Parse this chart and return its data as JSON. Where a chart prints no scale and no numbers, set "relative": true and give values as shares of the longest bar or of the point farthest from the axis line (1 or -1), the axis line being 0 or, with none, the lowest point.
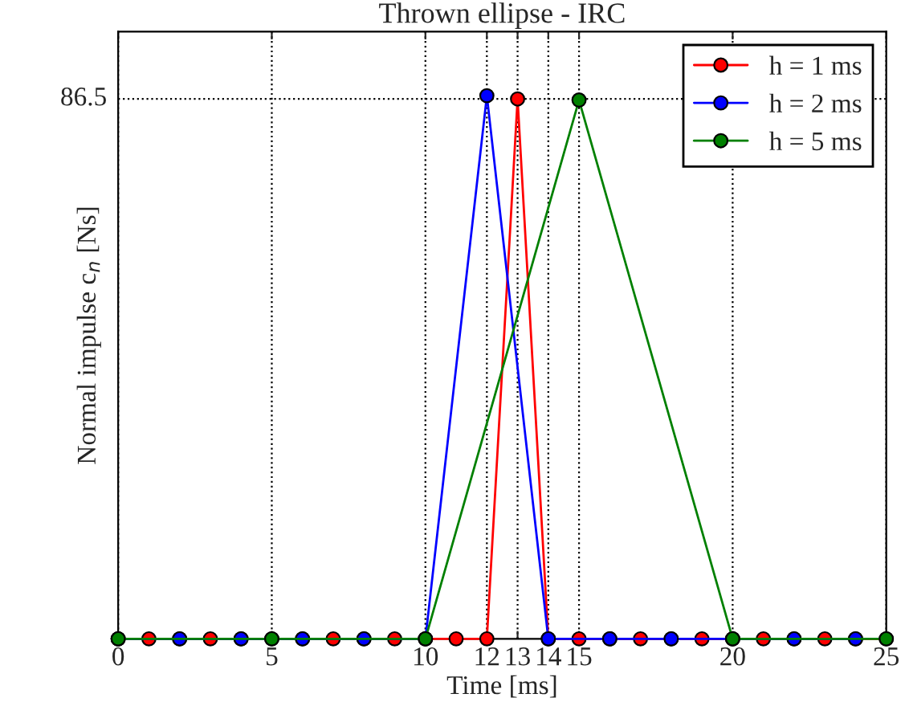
{
  "chart_data": {
    "type": "line",
    "title": "Thrown ellipse - IRC",
    "xlabel": "Time [ms]",
    "ylabel": "Normal impulse c$_{n}$ [Ns]",
    "xlim": [
      0,
      25
    ],
    "xticks": [
      0,
      5,
      10,
      12,
      13,
      14,
      15,
      20,
      25
    ],
    "relative": true,
    "annotations": [
      "86.5"
    ],
    "grid": "x",
    "legend": "top right",
    "marker": "circle",
    "line_style": "solid",
    "series": [
      {
        "name": "h = 1 ms",
        "color": "#ff0000",
        "x": [
          0,
          1,
          2,
          3,
          4,
          5,
          6,
          7,
          8,
          9,
          10,
          11,
          12,
          13,
          14,
          15,
          16,
          17,
          18,
          19,
          20,
          21,
          22,
          23,
          24,
          25
        ],
        "values": [
          0,
          0,
          0,
          0,
          0,
          0,
          0,
          0,
          0,
          0,
          0,
          0,
          0,
          0.994,
          0,
          0,
          0,
          0,
          0,
          0,
          0,
          0,
          0,
          0,
          0,
          0
        ]
      },
      {
        "name": "h = 2 ms",
        "color": "#0000ff",
        "x": [
          0,
          2,
          4,
          6,
          8,
          10,
          12,
          14,
          16,
          18,
          20,
          22,
          24
        ],
        "values": [
          0,
          0,
          0,
          0,
          0,
          0,
          1,
          0,
          0,
          0,
          0,
          0,
          0
        ]
      },
      {
        "name": "h = 5 ms",
        "color": "#008000",
        "x": [
          0,
          5,
          10,
          15,
          20,
          25
        ],
        "values": [
          0,
          0,
          0,
          0.992,
          0,
          0
        ]
      }
    ]
  }
}
